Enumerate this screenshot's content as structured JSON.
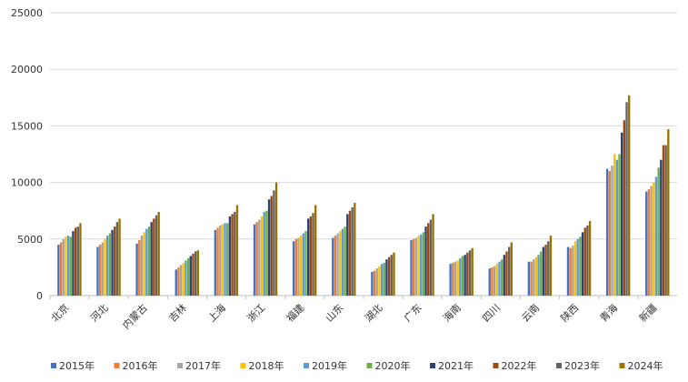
{
  "chart_data": {
    "type": "bar",
    "title": "",
    "xlabel": "",
    "ylabel": "",
    "ylim": [
      0,
      25000
    ],
    "yticks": [
      0,
      5000,
      10000,
      15000,
      20000,
      25000
    ],
    "grid": true,
    "legend_position": "bottom",
    "categories": [
      "北京",
      "河北",
      "内蒙古",
      "吉林",
      "上海",
      "浙江",
      "福建",
      "山东",
      "湖北",
      "广东",
      "海南",
      "四川",
      "云南",
      "陕西",
      "青海",
      "新疆"
    ],
    "series": [
      {
        "name": "2015年",
        "color": "#4472C4",
        "values": [
          4500,
          4300,
          4600,
          2300,
          5800,
          6300,
          4800,
          5100,
          2100,
          4900,
          2800,
          2400,
          3000,
          4300,
          11200,
          9200
        ]
      },
      {
        "name": "2016年",
        "color": "#ED7D31",
        "values": [
          4700,
          4500,
          4900,
          2500,
          6000,
          6500,
          5000,
          5300,
          2200,
          5000,
          2900,
          2500,
          3000,
          4200,
          11000,
          9400
        ]
      },
      {
        "name": "2017年",
        "color": "#A5A5A5",
        "values": [
          5000,
          4700,
          5300,
          2700,
          6200,
          6700,
          5100,
          5500,
          2400,
          5100,
          3000,
          2600,
          3200,
          4400,
          11500,
          9700
        ]
      },
      {
        "name": "2018年",
        "color": "#FFC000",
        "values": [
          5200,
          5000,
          5600,
          2900,
          6300,
          7000,
          5300,
          5700,
          2600,
          5300,
          3100,
          2800,
          3400,
          4800,
          12500,
          10000
        ]
      },
      {
        "name": "2019年",
        "color": "#5B9BD5",
        "values": [
          5300,
          5300,
          5900,
          3100,
          6400,
          7400,
          5500,
          5900,
          2800,
          5400,
          3300,
          3000,
          3600,
          5000,
          12000,
          10500
        ]
      },
      {
        "name": "2020年",
        "color": "#70AD47",
        "values": [
          5200,
          5500,
          6100,
          3300,
          6400,
          7500,
          5700,
          6100,
          2900,
          5600,
          3500,
          3200,
          3900,
          5200,
          12500,
          11300
        ]
      },
      {
        "name": "2021年",
        "color": "#264478",
        "values": [
          5700,
          5800,
          6500,
          3500,
          7000,
          8500,
          6800,
          7200,
          3200,
          6100,
          3600,
          3600,
          4300,
          5600,
          14400,
          12000
        ]
      },
      {
        "name": "2022年",
        "color": "#9E480E",
        "values": [
          6000,
          6100,
          6800,
          3700,
          7200,
          8800,
          7000,
          7500,
          3400,
          6400,
          3800,
          3900,
          4500,
          6000,
          15500,
          13300
        ]
      },
      {
        "name": "2023年",
        "color": "#636363",
        "values": [
          6100,
          6500,
          7100,
          3900,
          7400,
          9300,
          7300,
          7800,
          3600,
          6700,
          4000,
          4300,
          4800,
          6200,
          17100,
          13300
        ]
      },
      {
        "name": "2024年",
        "color": "#997300",
        "values": [
          6400,
          6800,
          7400,
          4000,
          8000,
          10000,
          8000,
          8200,
          3800,
          7200,
          4200,
          4700,
          5300,
          6600,
          17700,
          14700
        ]
      }
    ]
  }
}
